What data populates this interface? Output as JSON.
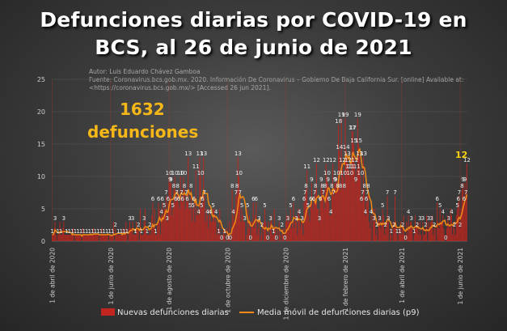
{
  "chart_data": {
    "type": "bar",
    "title_line1": "Defunciones diarias  por COVID-19 en",
    "title_line2": "BCS, al 26 de junio de 2021",
    "source": {
      "author": "Autor: Luis Eduardo Chávez Gamboa",
      "line1": "Fuente: Coronavirus.bcs.gob.mx. 2020. Información De Coronavirus – Gobierno De Baja California Sur. [online] Available at:",
      "line2": "<https://coronavirus.bcs.gob.mx/> [Accessed 26  jun 2021]."
    },
    "highlight": {
      "line1": "1632",
      "line2": "defunciones"
    },
    "last_value_label": "12",
    "ylim": [
      0,
      25
    ],
    "yticks": [
      "0",
      "5",
      "10",
      "15",
      "20",
      "25"
    ],
    "x_ticks": [
      {
        "label": "1 de abril de 2020",
        "day": 0
      },
      {
        "label": "1 de junio de 2020",
        "day": 61
      },
      {
        "label": "1 de agosto de 2020",
        "day": 122
      },
      {
        "label": "1 de octubre de 2020",
        "day": 183
      },
      {
        "label": "1 de diciembre de 2020",
        "day": 244
      },
      {
        "label": "1 de febrero de 2021",
        "day": 306
      },
      {
        "label": "1 de abril de 2021",
        "day": 365
      },
      {
        "label": "1 de junio de 2021",
        "day": 426
      }
    ],
    "daily_values": [
      1,
      1,
      2,
      3,
      1,
      0,
      1,
      1,
      3,
      1,
      1,
      2,
      3,
      1,
      1,
      1,
      1,
      1,
      1,
      1,
      1,
      1,
      2,
      0,
      1,
      1,
      1,
      1,
      1,
      1,
      1,
      0,
      2,
      1,
      1,
      1,
      1,
      1,
      1,
      1,
      1,
      1,
      1,
      2,
      1,
      1,
      1,
      1,
      1,
      0,
      1,
      1,
      2,
      1,
      1,
      1,
      1,
      1,
      1,
      0,
      1,
      1,
      1,
      1,
      3,
      0,
      2,
      1,
      1,
      1,
      1,
      1,
      1,
      1,
      2,
      1,
      1,
      3,
      1,
      0,
      2,
      3,
      2,
      2,
      3,
      1,
      1,
      1,
      3,
      2,
      2,
      0,
      5,
      1,
      1,
      1,
      3,
      5,
      2,
      1,
      1,
      1,
      2,
      1,
      4,
      6,
      2,
      5,
      1,
      1,
      3,
      6,
      5,
      1,
      4,
      6,
      4,
      5,
      5,
      7,
      3,
      6,
      10,
      9,
      9,
      4,
      5,
      8,
      10,
      6,
      7,
      8,
      6,
      5,
      10,
      7,
      6,
      10,
      8,
      5,
      7,
      6,
      13,
      5,
      5,
      8,
      3,
      5,
      6,
      3,
      11,
      4,
      5,
      4,
      13,
      10,
      5,
      6,
      13,
      7,
      3,
      5,
      4,
      2,
      5,
      4,
      3,
      3,
      5,
      5,
      3,
      4,
      1,
      2,
      1,
      5,
      1,
      0,
      1,
      2,
      1,
      0,
      2,
      0,
      1,
      3,
      0,
      2,
      8,
      4,
      3,
      5,
      7,
      8,
      13,
      10,
      7,
      3,
      5,
      4,
      3,
      3,
      0,
      1,
      5,
      2,
      4,
      0,
      3,
      3,
      6,
      2,
      4,
      6,
      1,
      2,
      3,
      0,
      1,
      2,
      0,
      3,
      5,
      3,
      1,
      0,
      3,
      0,
      3,
      4,
      1,
      1,
      5,
      2,
      0,
      2,
      0,
      3,
      1,
      0,
      2,
      1,
      2,
      0,
      3,
      4,
      3,
      4,
      3,
      5,
      2,
      3,
      6,
      2,
      4,
      3,
      1,
      5,
      4,
      2,
      3,
      3,
      1,
      6,
      7,
      8,
      11,
      5,
      4,
      3,
      6,
      9,
      5,
      6,
      7,
      8,
      12,
      5,
      5,
      3,
      6,
      9,
      8,
      7,
      5,
      8,
      12,
      10,
      9,
      6,
      4,
      4,
      8,
      12,
      7,
      9,
      9,
      10,
      8,
      18,
      14,
      8,
      19,
      12,
      10,
      8,
      19,
      14,
      13,
      12,
      11,
      10,
      11,
      17,
      17,
      15,
      12,
      9,
      11,
      19,
      15,
      13,
      10,
      6,
      7,
      13,
      8,
      4,
      6,
      7,
      8,
      3,
      2,
      4,
      0,
      5,
      3,
      5,
      1,
      2,
      0,
      4,
      3,
      2,
      3,
      5,
      4,
      1,
      2,
      3,
      7,
      3,
      0,
      2,
      1,
      0,
      3,
      2,
      7,
      3,
      1,
      0,
      2,
      1,
      3,
      1,
      2,
      4,
      1,
      0,
      3,
      1,
      4,
      2,
      3,
      3,
      2,
      0,
      1,
      4,
      2,
      2,
      3,
      1,
      3,
      1,
      0,
      3,
      1,
      1,
      2,
      4,
      0,
      3,
      2,
      3,
      3,
      4,
      1,
      2,
      2,
      0,
      6,
      3,
      2,
      5,
      3,
      3,
      4,
      2,
      1,
      0,
      2,
      4,
      3,
      2,
      5,
      4,
      1,
      3,
      2,
      1,
      4,
      5,
      6,
      7,
      2,
      5,
      8,
      9,
      6,
      9,
      7,
      12
    ],
    "legend": {
      "bars": "Nuevas defunciones diarias",
      "line": "Media móvil de defunciones diarias (p9)"
    },
    "colors": {
      "bar": "#c0261f",
      "line": "#f08a16",
      "highlight": "#f5b818"
    }
  }
}
